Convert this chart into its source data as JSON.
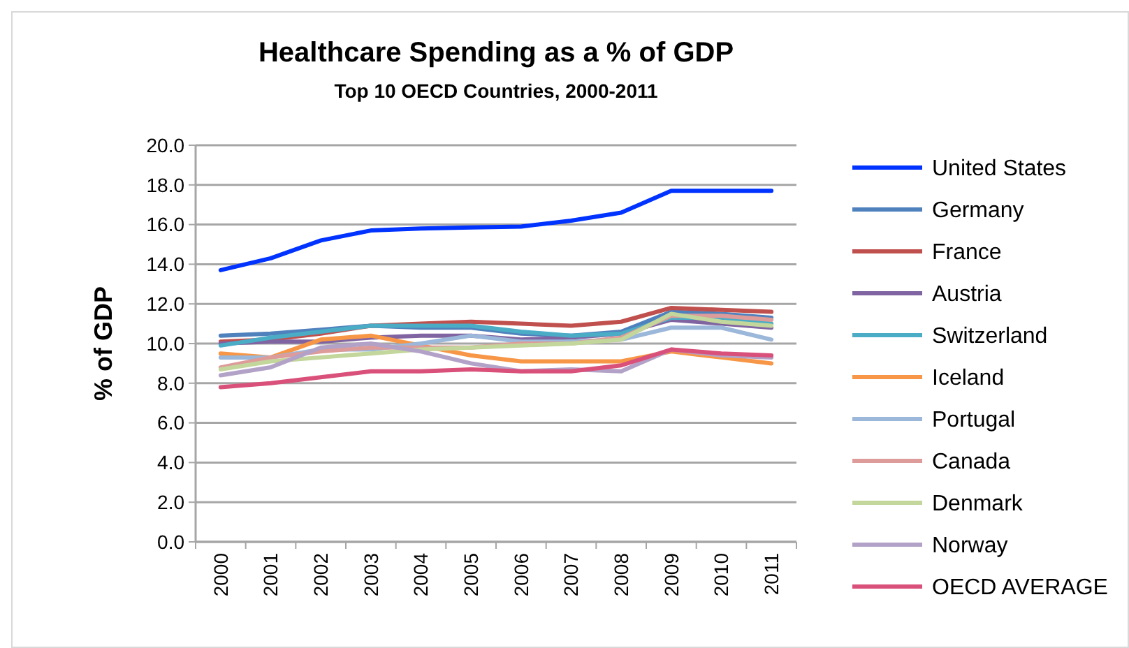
{
  "chart_data": {
    "type": "line",
    "title": "Healthcare Spending as a % of GDP",
    "subtitle": "Top 10 OECD Countries, 2000-2011",
    "ylabel": "% of GDP",
    "categories": [
      "2000",
      "2001",
      "2002",
      "2003",
      "2004",
      "2005",
      "2006",
      "2007",
      "2008",
      "2009",
      "2010",
      "2011"
    ],
    "ylim": [
      0,
      20
    ],
    "yticks": [
      {
        "value": 0,
        "label": "0.0"
      },
      {
        "value": 2,
        "label": "2.0"
      },
      {
        "value": 4,
        "label": "4.0"
      },
      {
        "value": 6,
        "label": "6.0"
      },
      {
        "value": 8,
        "label": "8.0"
      },
      {
        "value": 10,
        "label": "10.0"
      },
      {
        "value": 12,
        "label": "12.0"
      },
      {
        "value": 14,
        "label": "14.0"
      },
      {
        "value": 16,
        "label": "16.0"
      },
      {
        "value": 18,
        "label": "18.0"
      },
      {
        "value": 20,
        "label": "20.0"
      }
    ],
    "grid": "y",
    "legend": "right",
    "marker": "none",
    "line_style": "solid",
    "series": [
      {
        "name": "United States",
        "color": "#0033ff",
        "values": [
          13.7,
          14.3,
          15.2,
          15.7,
          15.8,
          15.85,
          15.9,
          16.2,
          16.6,
          17.7,
          17.7,
          17.7
        ]
      },
      {
        "name": "Germany",
        "color": "#4f81bd",
        "values": [
          10.4,
          10.5,
          10.7,
          10.9,
          10.8,
          10.8,
          10.5,
          10.4,
          10.6,
          11.6,
          11.5,
          11.3
        ]
      },
      {
        "name": "France",
        "color": "#c0504d",
        "values": [
          10.1,
          10.2,
          10.5,
          10.9,
          11.0,
          11.1,
          11.0,
          10.9,
          11.1,
          11.8,
          11.7,
          11.6
        ]
      },
      {
        "name": "Austria",
        "color": "#8064a2",
        "values": [
          10.0,
          10.1,
          10.1,
          10.3,
          10.4,
          10.4,
          10.2,
          10.3,
          10.5,
          11.2,
          11.0,
          10.8
        ]
      },
      {
        "name": "Switzerland",
        "color": "#4bacc6",
        "values": [
          9.9,
          10.3,
          10.6,
          10.9,
          10.9,
          10.9,
          10.6,
          10.4,
          10.5,
          11.3,
          11.3,
          11.0
        ]
      },
      {
        "name": "Iceland",
        "color": "#f79646",
        "values": [
          9.5,
          9.3,
          10.2,
          10.4,
          9.9,
          9.4,
          9.1,
          9.1,
          9.1,
          9.6,
          9.3,
          9.0
        ]
      },
      {
        "name": "Portugal",
        "color": "#9bb7d9",
        "values": [
          9.3,
          9.3,
          9.7,
          9.7,
          10.0,
          10.4,
          10.1,
          10.1,
          10.2,
          10.8,
          10.8,
          10.2
        ]
      },
      {
        "name": "Canada",
        "color": "#dd9c9a",
        "values": [
          8.8,
          9.3,
          9.6,
          9.8,
          9.8,
          9.8,
          10.0,
          10.0,
          10.3,
          11.4,
          11.4,
          11.2
        ]
      },
      {
        "name": "Denmark",
        "color": "#c3d69b",
        "values": [
          8.7,
          9.1,
          9.3,
          9.5,
          9.7,
          9.8,
          9.9,
          10.0,
          10.2,
          11.5,
          11.1,
          10.9
        ]
      },
      {
        "name": "Norway",
        "color": "#b3a2c7",
        "values": [
          8.4,
          8.8,
          9.8,
          10.0,
          9.6,
          9.0,
          8.6,
          8.7,
          8.6,
          9.7,
          9.4,
          9.3
        ]
      },
      {
        "name": "OECD AVERAGE",
        "color": "#d9507a",
        "values": [
          7.8,
          8.0,
          8.3,
          8.6,
          8.6,
          8.7,
          8.6,
          8.6,
          8.9,
          9.7,
          9.5,
          9.4
        ]
      }
    ]
  }
}
